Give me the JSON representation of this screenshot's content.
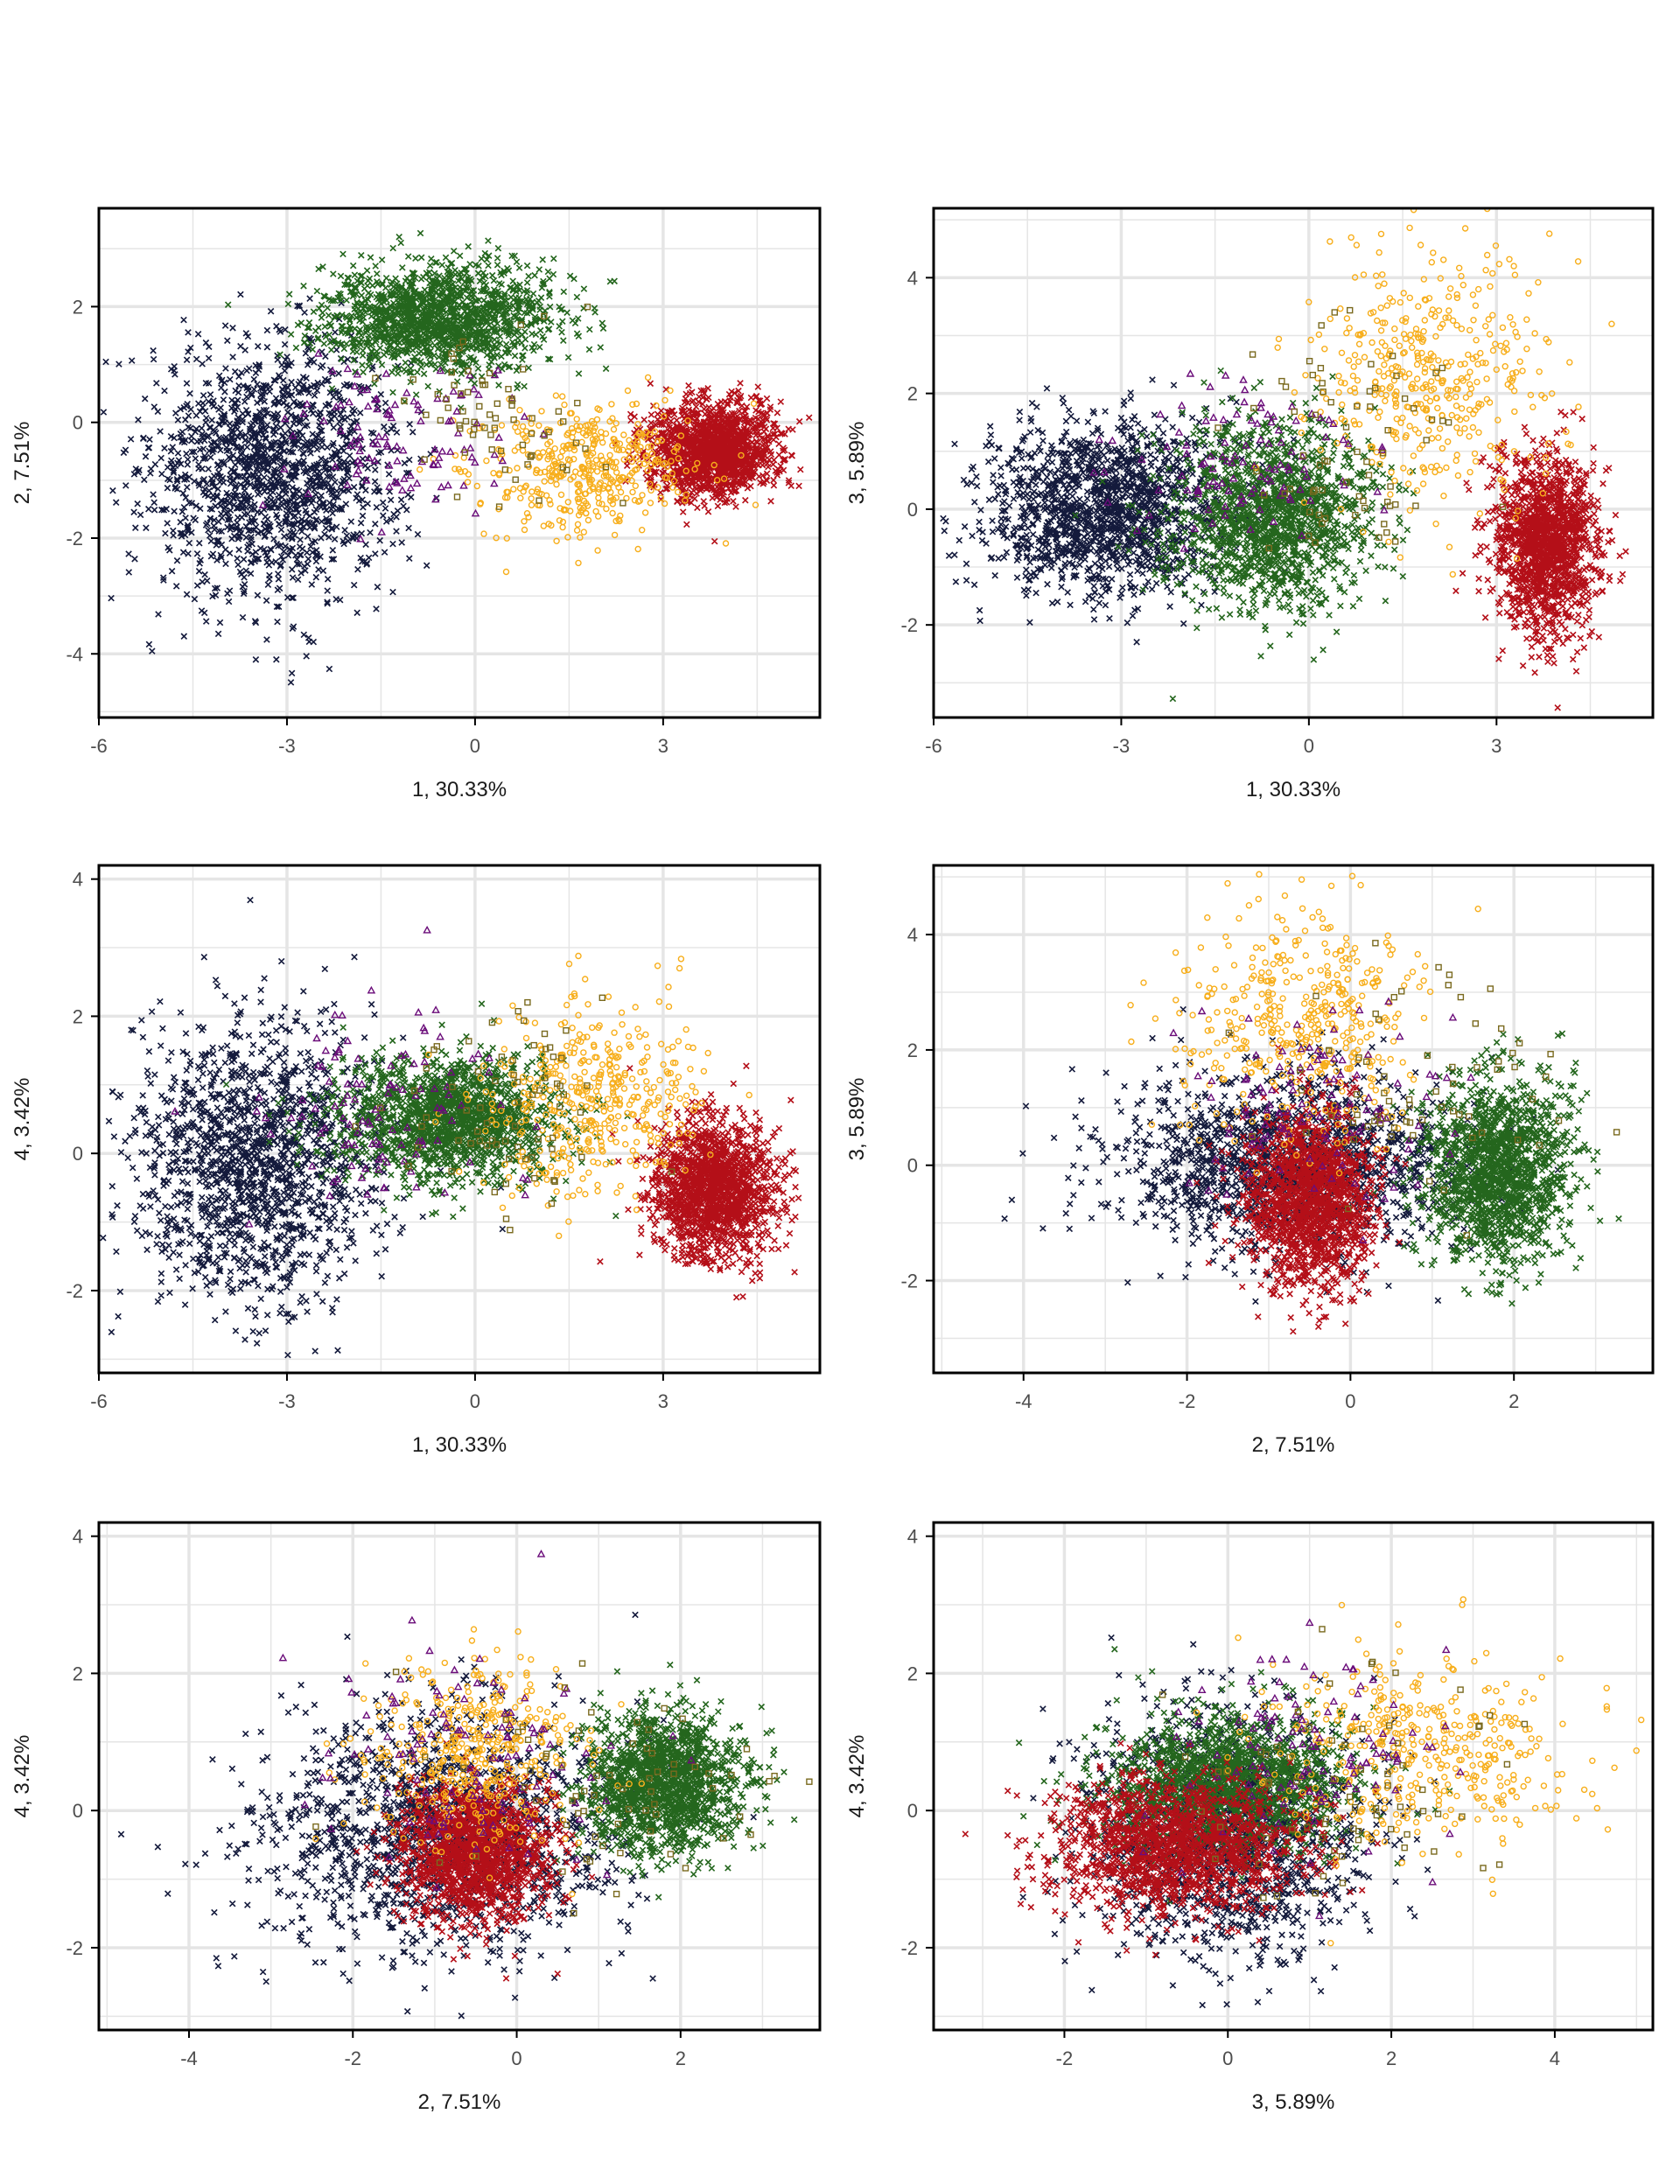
{
  "colors": {
    "navy": "#141a3c",
    "purple": "#6b0d7a",
    "green": "#24661d",
    "olive": "#7a6a1f",
    "orange": "#f7ae1b",
    "red": "#b40f18",
    "grid": "#e5e5e5",
    "axis": "#000000",
    "tick_text": "#4d4d4d",
    "label_text": "#1a1a1a"
  },
  "chart_data": [
    {
      "type": "scatter",
      "title": "",
      "xlabel": "1, 30.33%",
      "ylabel": "2, 7.51%",
      "xlim": [
        -6,
        5.5
      ],
      "ylim": [
        -5.1,
        3.7
      ],
      "xticks": [
        -6,
        -3,
        0,
        3
      ],
      "yticks": [
        -4,
        -2,
        0,
        2
      ],
      "clusters": [
        {
          "color_key": "navy",
          "marker": "x",
          "n": 1500,
          "cx": -3.2,
          "cy": -0.8,
          "sx": 1.0,
          "sy": 1.1
        },
        {
          "color_key": "green",
          "marker": "x",
          "n": 1500,
          "cx": -0.6,
          "cy": 1.8,
          "sx": 0.9,
          "sy": 0.45
        },
        {
          "color_key": "red",
          "marker": "x",
          "n": 1500,
          "cx": 3.8,
          "cy": -0.5,
          "sx": 0.5,
          "sy": 0.4
        },
        {
          "color_key": "orange",
          "marker": "circle",
          "n": 420,
          "cx": 1.8,
          "cy": -0.8,
          "sx": 0.9,
          "sy": 0.55
        },
        {
          "color_key": "purple",
          "marker": "triangle",
          "n": 110,
          "cx": -1.2,
          "cy": -0.3,
          "sx": 0.9,
          "sy": 0.7
        },
        {
          "color_key": "olive",
          "marker": "square",
          "n": 70,
          "cx": 0.5,
          "cy": 0.2,
          "sx": 0.8,
          "sy": 0.7
        }
      ]
    },
    {
      "type": "scatter",
      "title": "",
      "xlabel": "1, 30.33%",
      "ylabel": "3, 5.89%",
      "xlim": [
        -6,
        5.5
      ],
      "ylim": [
        -3.6,
        5.2
      ],
      "xticks": [
        -6,
        -3,
        0,
        3
      ],
      "yticks": [
        -2,
        0,
        2,
        4
      ],
      "clusters": [
        {
          "color_key": "navy",
          "marker": "x",
          "n": 1500,
          "cx": -3.2,
          "cy": 0.0,
          "sx": 0.95,
          "sy": 0.75
        },
        {
          "color_key": "green",
          "marker": "x",
          "n": 1500,
          "cx": -0.6,
          "cy": -0.1,
          "sx": 0.8,
          "sy": 0.8
        },
        {
          "color_key": "red",
          "marker": "x",
          "n": 1500,
          "cx": 3.8,
          "cy": -0.6,
          "sx": 0.4,
          "sy": 0.75
        },
        {
          "color_key": "orange",
          "marker": "circle",
          "n": 420,
          "cx": 1.9,
          "cy": 2.3,
          "sx": 0.9,
          "sy": 1.1
        },
        {
          "color_key": "purple",
          "marker": "triangle",
          "n": 110,
          "cx": -1.0,
          "cy": 0.8,
          "sx": 1.0,
          "sy": 0.8
        },
        {
          "color_key": "olive",
          "marker": "square",
          "n": 70,
          "cx": 0.5,
          "cy": 1.2,
          "sx": 0.9,
          "sy": 0.9
        }
      ]
    },
    {
      "type": "scatter",
      "title": "",
      "xlabel": "1, 30.33%",
      "ylabel": "4, 3.42%",
      "xlim": [
        -6,
        5.5
      ],
      "ylim": [
        -3.2,
        4.2
      ],
      "xticks": [
        -6,
        -3,
        0,
        3
      ],
      "yticks": [
        -2,
        0,
        2,
        4
      ],
      "clusters": [
        {
          "color_key": "navy",
          "marker": "x",
          "n": 1500,
          "cx": -3.5,
          "cy": -0.2,
          "sx": 1.0,
          "sy": 1.0
        },
        {
          "color_key": "green",
          "marker": "x",
          "n": 1500,
          "cx": -0.4,
          "cy": 0.5,
          "sx": 0.9,
          "sy": 0.45
        },
        {
          "color_key": "red",
          "marker": "x",
          "n": 1500,
          "cx": 3.8,
          "cy": -0.5,
          "sx": 0.5,
          "sy": 0.5
        },
        {
          "color_key": "orange",
          "marker": "circle",
          "n": 420,
          "cx": 1.8,
          "cy": 0.8,
          "sx": 0.9,
          "sy": 0.7
        },
        {
          "color_key": "purple",
          "marker": "triangle",
          "n": 110,
          "cx": -1.5,
          "cy": 0.7,
          "sx": 1.0,
          "sy": 0.8
        },
        {
          "color_key": "olive",
          "marker": "square",
          "n": 70,
          "cx": 0.5,
          "cy": 0.6,
          "sx": 0.9,
          "sy": 0.8
        }
      ]
    },
    {
      "type": "scatter",
      "title": "",
      "xlabel": "2, 7.51%",
      "ylabel": "3, 5.89%",
      "xlim": [
        -5.1,
        3.7
      ],
      "ylim": [
        -3.6,
        5.2
      ],
      "xticks": [
        -4,
        -2,
        0,
        2
      ],
      "yticks": [
        -2,
        0,
        2,
        4
      ],
      "clusters": [
        {
          "color_key": "navy",
          "marker": "x",
          "n": 1500,
          "cx": -0.8,
          "cy": 0.0,
          "sx": 1.1,
          "sy": 0.75
        },
        {
          "color_key": "green",
          "marker": "x",
          "n": 1500,
          "cx": 1.8,
          "cy": -0.1,
          "sx": 0.45,
          "sy": 0.8
        },
        {
          "color_key": "red",
          "marker": "x",
          "n": 1500,
          "cx": -0.5,
          "cy": -0.6,
          "sx": 0.4,
          "sy": 0.75
        },
        {
          "color_key": "orange",
          "marker": "circle",
          "n": 420,
          "cx": -0.6,
          "cy": 2.5,
          "sx": 0.7,
          "sy": 1.0
        },
        {
          "color_key": "purple",
          "marker": "triangle",
          "n": 110,
          "cx": -0.5,
          "cy": 1.0,
          "sx": 0.8,
          "sy": 0.8
        },
        {
          "color_key": "olive",
          "marker": "square",
          "n": 70,
          "cx": 0.8,
          "cy": 1.3,
          "sx": 0.9,
          "sy": 0.9
        }
      ]
    },
    {
      "type": "scatter",
      "title": "",
      "xlabel": "2, 7.51%",
      "ylabel": "4, 3.42%",
      "xlim": [
        -5.1,
        3.7
      ],
      "ylim": [
        -3.2,
        4.2
      ],
      "xticks": [
        -4,
        -2,
        0,
        2
      ],
      "yticks": [
        -2,
        0,
        2,
        4
      ],
      "clusters": [
        {
          "color_key": "navy",
          "marker": "x",
          "n": 1500,
          "cx": -0.9,
          "cy": -0.3,
          "sx": 1.1,
          "sy": 0.9
        },
        {
          "color_key": "green",
          "marker": "x",
          "n": 1500,
          "cx": 1.8,
          "cy": 0.4,
          "sx": 0.5,
          "sy": 0.5
        },
        {
          "color_key": "red",
          "marker": "x",
          "n": 1500,
          "cx": -0.5,
          "cy": -0.6,
          "sx": 0.45,
          "sy": 0.5
        },
        {
          "color_key": "orange",
          "marker": "circle",
          "n": 420,
          "cx": -0.5,
          "cy": 0.9,
          "sx": 0.7,
          "sy": 0.7
        },
        {
          "color_key": "purple",
          "marker": "triangle",
          "n": 110,
          "cx": -0.5,
          "cy": 0.8,
          "sx": 0.9,
          "sy": 0.8
        },
        {
          "color_key": "olive",
          "marker": "square",
          "n": 70,
          "cx": 1.0,
          "cy": 0.3,
          "sx": 1.0,
          "sy": 0.8
        }
      ]
    },
    {
      "type": "scatter",
      "title": "",
      "xlabel": "3, 5.89%",
      "ylabel": "4, 3.42%",
      "xlim": [
        -3.6,
        5.2
      ],
      "ylim": [
        -3.2,
        4.2
      ],
      "xticks": [
        -2,
        0,
        2,
        4
      ],
      "yticks": [
        -2,
        0,
        2,
        4
      ],
      "clusters": [
        {
          "color_key": "navy",
          "marker": "x",
          "n": 1500,
          "cx": 0.0,
          "cy": -0.3,
          "sx": 0.8,
          "sy": 0.9
        },
        {
          "color_key": "green",
          "marker": "x",
          "n": 1500,
          "cx": 0.0,
          "cy": 0.4,
          "sx": 0.75,
          "sy": 0.5
        },
        {
          "color_key": "red",
          "marker": "x",
          "n": 1500,
          "cx": -0.6,
          "cy": -0.5,
          "sx": 0.75,
          "sy": 0.5
        },
        {
          "color_key": "orange",
          "marker": "circle",
          "n": 420,
          "cx": 2.4,
          "cy": 0.8,
          "sx": 1.0,
          "sy": 0.7
        },
        {
          "color_key": "purple",
          "marker": "triangle",
          "n": 110,
          "cx": 1.0,
          "cy": 0.9,
          "sx": 0.9,
          "sy": 0.8
        },
        {
          "color_key": "olive",
          "marker": "square",
          "n": 70,
          "cx": 1.5,
          "cy": 0.5,
          "sx": 1.1,
          "sy": 0.8
        }
      ]
    }
  ]
}
